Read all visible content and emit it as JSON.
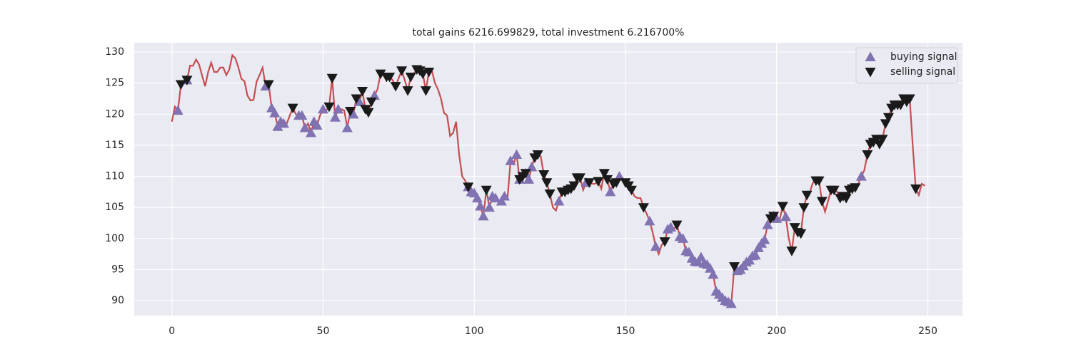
{
  "chart_data": {
    "type": "line",
    "title": "total gains 6216.699829, total investment 6.216700%",
    "x": [
      0,
      1,
      2,
      3,
      4,
      5,
      6,
      7,
      8,
      9,
      10,
      11,
      12,
      13,
      14,
      15,
      16,
      17,
      18,
      19,
      20,
      21,
      22,
      23,
      24,
      25,
      26,
      27,
      28,
      29,
      30,
      31,
      32,
      33,
      34,
      35,
      36,
      37,
      38,
      39,
      40,
      41,
      42,
      43,
      44,
      45,
      46,
      47,
      48,
      49,
      50,
      51,
      52,
      53,
      54,
      55,
      56,
      57,
      58,
      59,
      60,
      61,
      62,
      63,
      64,
      65,
      66,
      67,
      68,
      69,
      70,
      71,
      72,
      73,
      74,
      75,
      76,
      77,
      78,
      79,
      80,
      81,
      82,
      83,
      84,
      85,
      86,
      87,
      88,
      89,
      90,
      91,
      92,
      93,
      94,
      95,
      96,
      97,
      98,
      99,
      100,
      101,
      102,
      103,
      104,
      105,
      106,
      107,
      108,
      109,
      110,
      111,
      112,
      113,
      114,
      115,
      116,
      117,
      118,
      119,
      120,
      121,
      122,
      123,
      124,
      125,
      126,
      127,
      128,
      129,
      130,
      131,
      132,
      133,
      134,
      135,
      136,
      137,
      138,
      139,
      140,
      141,
      142,
      143,
      144,
      145,
      146,
      147,
      148,
      149,
      150,
      151,
      152,
      153,
      154,
      155,
      156,
      157,
      158,
      159,
      160,
      161,
      162,
      163,
      164,
      165,
      166,
      167,
      168,
      169,
      170,
      171,
      172,
      173,
      174,
      175,
      176,
      177,
      178,
      179,
      180,
      181,
      182,
      183,
      184,
      185,
      186,
      187,
      188,
      189,
      190,
      191,
      192,
      193,
      194,
      195,
      196,
      197,
      198,
      199,
      200,
      201,
      202,
      203,
      204,
      205,
      206,
      207,
      208,
      209,
      210,
      211,
      212,
      213,
      214,
      215,
      216,
      217,
      218,
      219,
      220,
      221,
      222,
      223,
      224,
      225,
      226,
      227,
      228,
      229,
      230,
      231,
      232,
      233,
      234,
      235,
      236,
      237,
      238,
      239,
      240,
      241,
      242,
      243,
      244,
      245,
      246,
      247,
      248,
      249
    ],
    "values": [
      118.8,
      121.2,
      120.6,
      124.8,
      125.0,
      125.5,
      127.8,
      127.8,
      128.8,
      128.0,
      126.2,
      124.5,
      126.8,
      128.3,
      126.8,
      126.8,
      127.5,
      127.5,
      126.3,
      127.2,
      129.5,
      129.0,
      127.5,
      125.7,
      125.3,
      123.0,
      122.2,
      122.3,
      125.2,
      126.3,
      127.5,
      124.5,
      124.8,
      121.0,
      120.2,
      118.0,
      118.8,
      118.5,
      118.5,
      119.8,
      121.0,
      120.0,
      119.8,
      119.8,
      117.8,
      118.5,
      117.0,
      118.8,
      118.2,
      119.8,
      120.8,
      120.6,
      121.2,
      125.8,
      119.5,
      120.8,
      120.8,
      120.6,
      117.8,
      120.5,
      120.0,
      122.5,
      122.0,
      123.7,
      120.8,
      120.3,
      122.0,
      123.0,
      124.0,
      126.5,
      126.2,
      126.0,
      126.0,
      125.5,
      124.5,
      125.8,
      127.0,
      125.5,
      123.8,
      126.0,
      126.5,
      127.2,
      127.0,
      126.5,
      123.8,
      126.8,
      127.0,
      125.0,
      124.0,
      122.5,
      120.2,
      119.8,
      116.5,
      117.0,
      118.8,
      113.5,
      110.0,
      109.3,
      108.3,
      107.5,
      107.3,
      106.5,
      105.2,
      103.6,
      107.8,
      105.0,
      106.8,
      106.5,
      106.0,
      106.0,
      106.8,
      106.5,
      112.5,
      112.0,
      113.5,
      109.5,
      110.0,
      110.5,
      109.5,
      111.5,
      113.0,
      113.5,
      113.2,
      110.3,
      109.0,
      107.2,
      105.0,
      104.5,
      106.0,
      107.5,
      107.5,
      107.8,
      108.0,
      108.5,
      109.8,
      109.8,
      107.8,
      109.0,
      109.0,
      108.8,
      108.8,
      109.2,
      108.0,
      110.5,
      109.5,
      107.5,
      108.8,
      109.0,
      110.0,
      109.8,
      109.0,
      108.5,
      107.8,
      106.8,
      106.5,
      106.5,
      105.0,
      104.0,
      102.8,
      101.0,
      98.7,
      97.5,
      99.0,
      99.5,
      101.5,
      101.8,
      101.5,
      102.2,
      100.3,
      100.0,
      98.0,
      97.8,
      96.8,
      96.3,
      96.2,
      97.0,
      96.0,
      95.8,
      95.2,
      94.2,
      91.5,
      91.0,
      90.5,
      90.0,
      89.8,
      89.5,
      95.5,
      94.8,
      95.0,
      95.6,
      96.2,
      96.5,
      97.2,
      97.3,
      98.5,
      99.2,
      99.8,
      102.2,
      103.2,
      103.6,
      103.2,
      103.0,
      105.2,
      103.5,
      100.0,
      98.0,
      101.8,
      101.0,
      100.8,
      105.0,
      107.0,
      107.5,
      109.0,
      109.3,
      109.3,
      106.0,
      104.3,
      106.0,
      107.8,
      107.8,
      107.5,
      106.5,
      106.8,
      106.5,
      107.8,
      108.0,
      108.2,
      108.8,
      110.0,
      111.0,
      113.5,
      115.2,
      115.5,
      116.0,
      115.2,
      116.0,
      118.5,
      119.5,
      121.0,
      121.5,
      121.5,
      121.5,
      122.5,
      122.0,
      122.5,
      115.0,
      108.0,
      107.0,
      108.8,
      108.5
    ],
    "color": "#c44e52",
    "signals": [
      {
        "name": "buying signal",
        "marker": "^",
        "color": "#8172b2",
        "x": [
          2,
          5,
          31,
          33,
          34,
          35,
          36,
          37,
          42,
          43,
          44,
          46,
          47,
          48,
          50,
          54,
          55,
          58,
          60,
          62,
          67,
          98,
          99,
          100,
          101,
          102,
          103,
          105,
          106,
          107,
          109,
          110,
          112,
          114,
          115,
          117,
          118,
          119,
          128,
          137,
          145,
          148,
          158,
          160,
          164,
          165,
          168,
          169,
          170,
          171,
          172,
          173,
          174,
          175,
          176,
          177,
          178,
          179,
          180,
          181,
          182,
          183,
          184,
          185,
          187,
          188,
          189,
          190,
          191,
          192,
          193,
          194,
          195,
          196,
          197,
          199,
          200,
          203,
          228
        ]
      },
      {
        "name": "selling signal",
        "marker": "v",
        "color": "#1a1a1a",
        "x": [
          3,
          5,
          32,
          40,
          52,
          53,
          59,
          61,
          63,
          64,
          65,
          66,
          69,
          71,
          72,
          74,
          76,
          78,
          79,
          81,
          82,
          83,
          84,
          85,
          98,
          104,
          115,
          116,
          117,
          120,
          121,
          123,
          124,
          125,
          129,
          130,
          131,
          132,
          133,
          134,
          135,
          138,
          141,
          143,
          144,
          146,
          147,
          150,
          151,
          152,
          156,
          163,
          167,
          186,
          198,
          199,
          202,
          205,
          206,
          207,
          208,
          209,
          210,
          213,
          214,
          215,
          218,
          219,
          221,
          222,
          223,
          224,
          225,
          226,
          230,
          231,
          232,
          233,
          234,
          235,
          236,
          237,
          238,
          239,
          240,
          241,
          242,
          243,
          244,
          246
        ]
      }
    ],
    "xlim": [
      -12.45,
      261.45
    ],
    "ylim": [
      87.6,
      131.5
    ],
    "xticks": [
      0,
      50,
      100,
      150,
      200,
      250
    ],
    "yticks": [
      90,
      95,
      100,
      105,
      110,
      115,
      120,
      125,
      130
    ],
    "grid": true,
    "legend": "upper right"
  }
}
